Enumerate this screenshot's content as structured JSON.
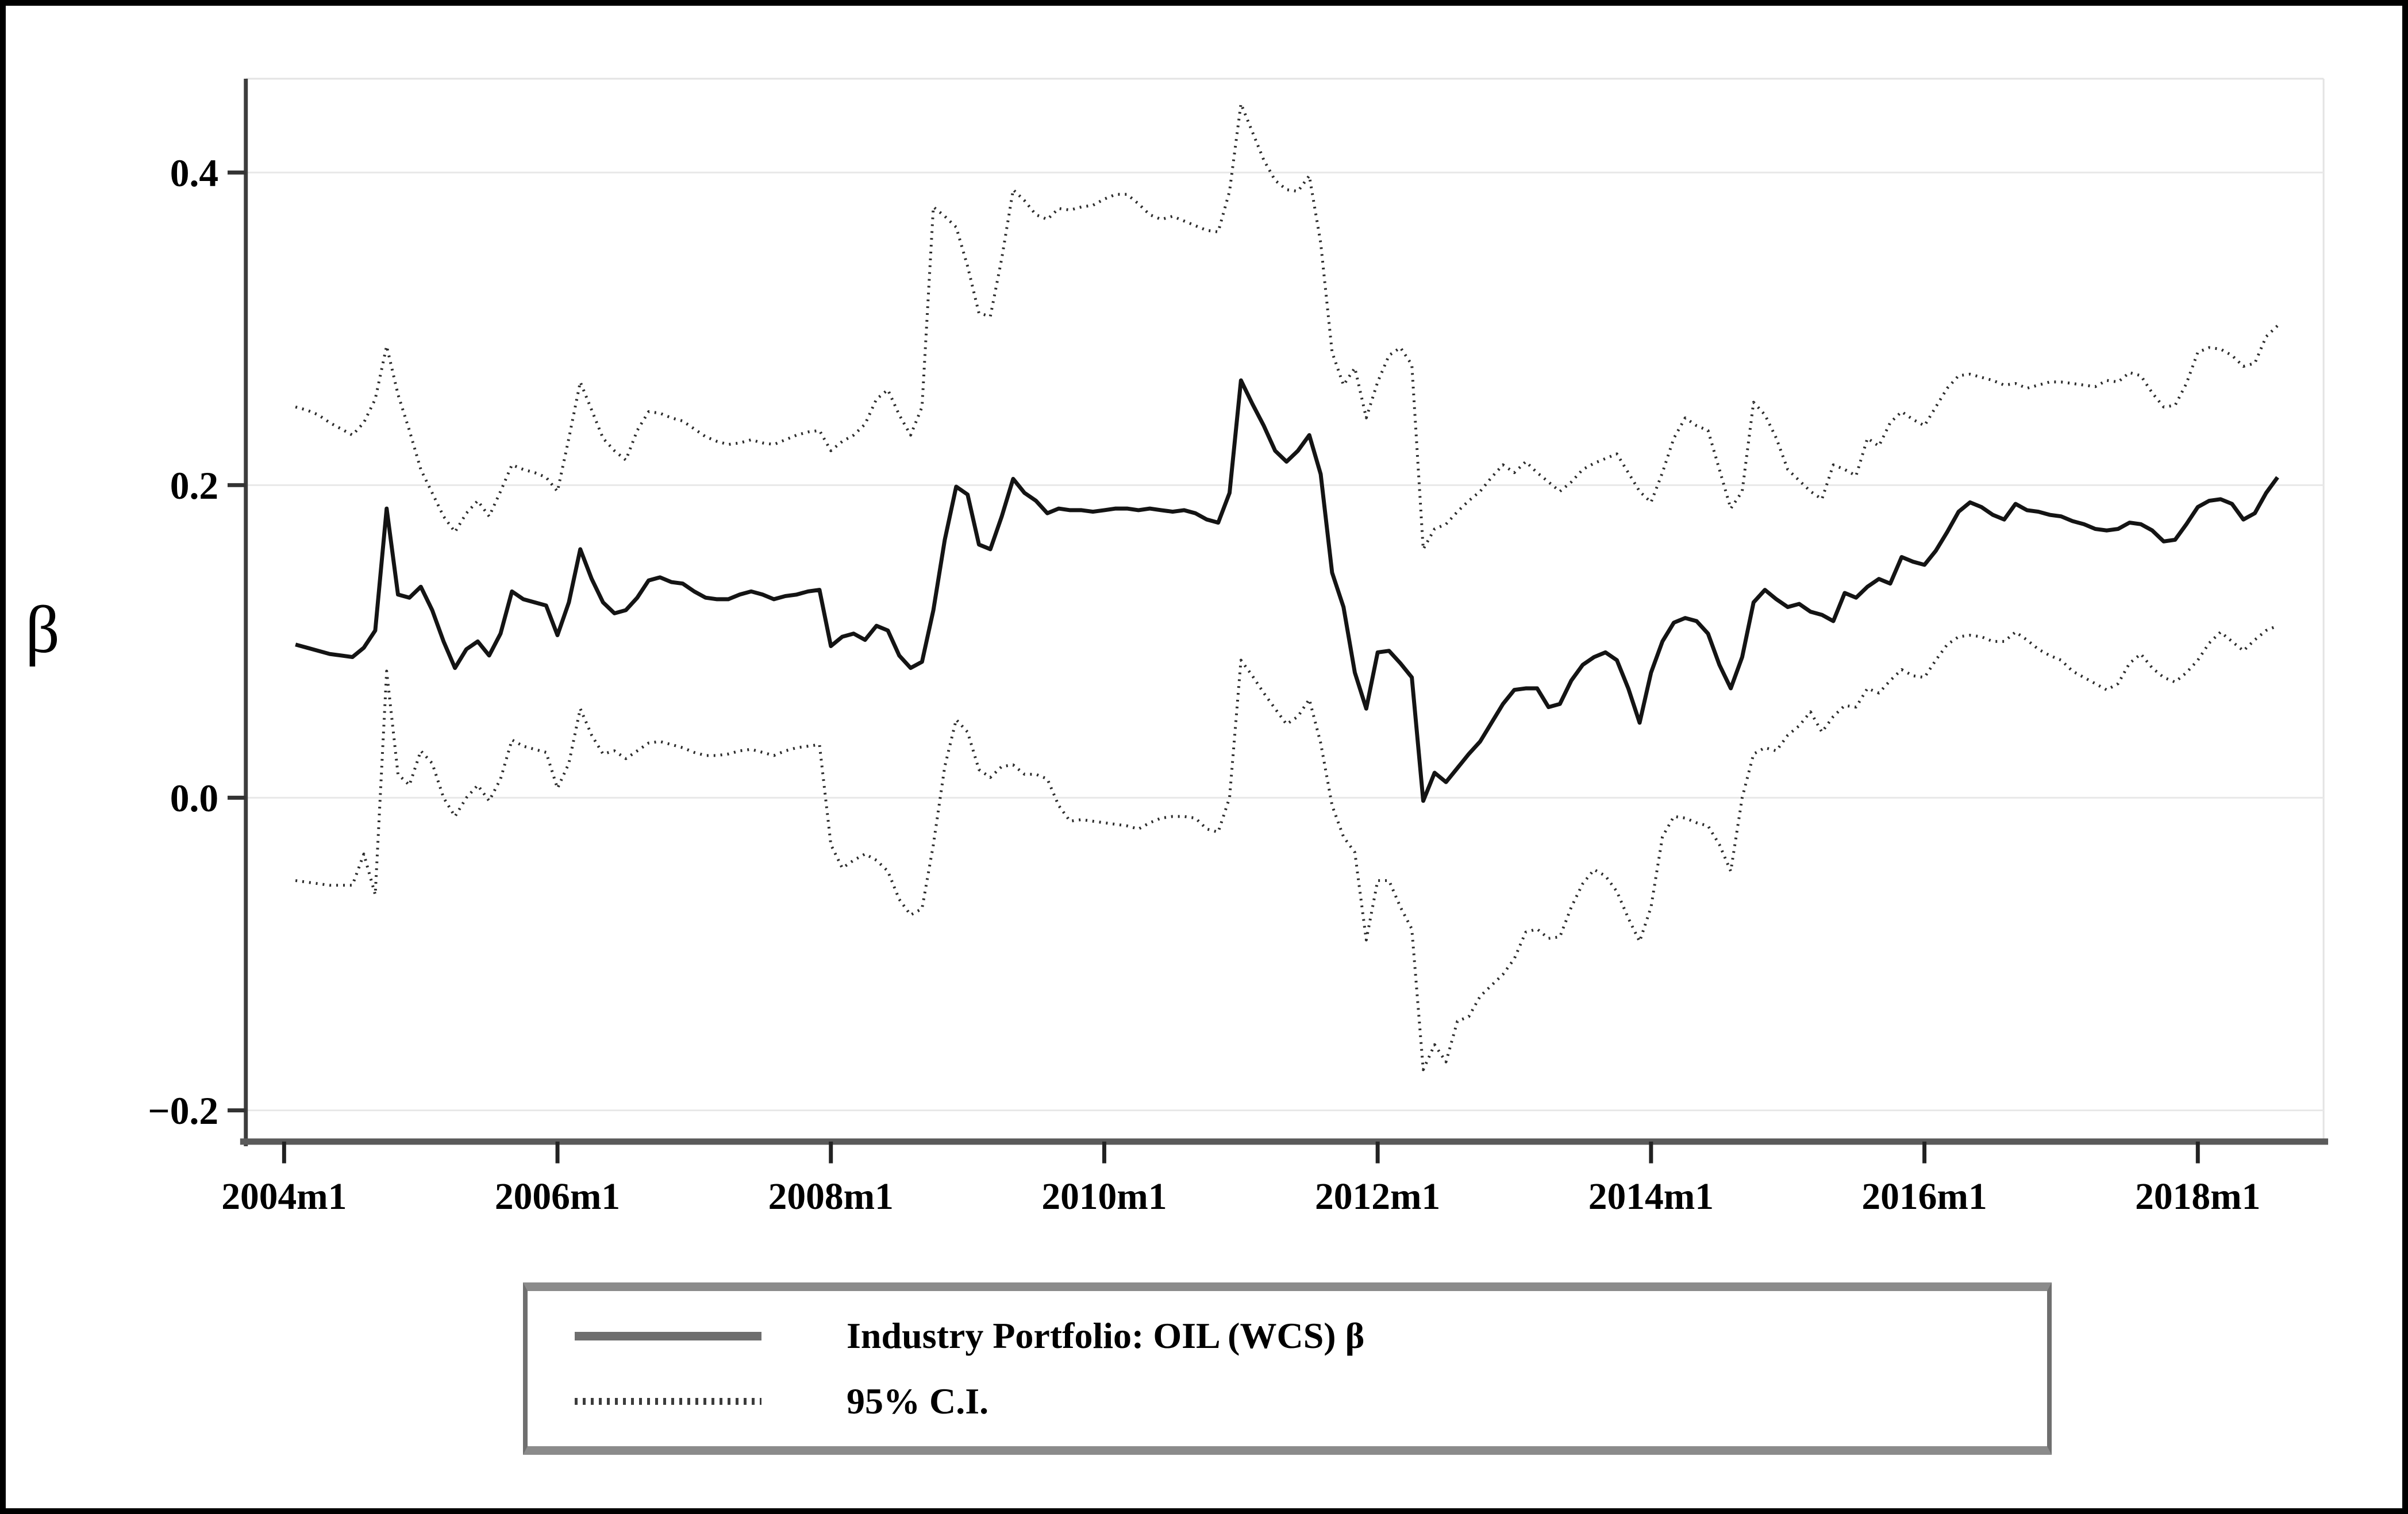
{
  "figure": {
    "ylabel": "β",
    "legend": [
      {
        "label": "Industry Portfolio: OIL (WCS) β",
        "style": "solid"
      },
      {
        "label": "95% C.I.",
        "style": "dotted"
      }
    ]
  },
  "chart_data": {
    "type": "line",
    "title": "",
    "xlabel": "",
    "ylabel": "β",
    "frequency": "monthly",
    "x_start": "2004m2",
    "x_end": "2018m8",
    "xlim_years": [
      2003.72,
      2018.92
    ],
    "ylim": [
      -0.22,
      0.46
    ],
    "grid": true,
    "legend_position": "bottom",
    "x_ticks": [
      {
        "label": "2004m1",
        "year": 2004.0
      },
      {
        "label": "2006m1",
        "year": 2006.0
      },
      {
        "label": "2008m1",
        "year": 2008.0
      },
      {
        "label": "2010m1",
        "year": 2010.0
      },
      {
        "label": "2012m1",
        "year": 2012.0
      },
      {
        "label": "2014m1",
        "year": 2014.0
      },
      {
        "label": "2016m1",
        "year": 2016.0
      },
      {
        "label": "2018m1",
        "year": 2018.0
      }
    ],
    "y_ticks": [
      {
        "label": "−0.2",
        "value": -0.2
      },
      {
        "label": "0.0",
        "value": 0.0
      },
      {
        "label": "0.2",
        "value": 0.2
      },
      {
        "label": "0.4",
        "value": 0.4
      }
    ],
    "series": [
      {
        "name": "Industry Portfolio: OIL (WCS) β",
        "style": "solid",
        "color": "#141414",
        "width": 7,
        "values": [
          0.098,
          0.096,
          0.094,
          0.092,
          0.091,
          0.09,
          0.096,
          0.107,
          0.185,
          0.13,
          0.128,
          0.135,
          0.12,
          0.1,
          0.083,
          0.095,
          0.1,
          0.091,
          0.105,
          0.132,
          0.127,
          0.125,
          0.123,
          0.104,
          0.125,
          0.159,
          0.14,
          0.125,
          0.118,
          0.12,
          0.128,
          0.139,
          0.141,
          0.138,
          0.137,
          0.132,
          0.128,
          0.127,
          0.127,
          0.13,
          0.132,
          0.13,
          0.127,
          0.129,
          0.13,
          0.132,
          0.133,
          0.097,
          0.103,
          0.105,
          0.101,
          0.11,
          0.107,
          0.091,
          0.083,
          0.087,
          0.12,
          0.165,
          0.199,
          0.194,
          0.162,
          0.159,
          0.18,
          0.204,
          0.195,
          0.19,
          0.182,
          0.185,
          0.184,
          0.184,
          0.183,
          0.184,
          0.185,
          0.185,
          0.184,
          0.185,
          0.184,
          0.183,
          0.184,
          0.182,
          0.178,
          0.176,
          0.195,
          0.267,
          0.252,
          0.238,
          0.222,
          0.215,
          0.222,
          0.232,
          0.207,
          0.144,
          0.122,
          0.08,
          0.057,
          0.093,
          0.094,
          0.086,
          0.077,
          -0.002,
          0.016,
          0.01,
          0.019,
          0.028,
          0.036,
          0.048,
          0.06,
          0.069,
          0.07,
          0.07,
          0.058,
          0.06,
          0.075,
          0.085,
          0.09,
          0.093,
          0.088,
          0.07,
          0.048,
          0.08,
          0.1,
          0.112,
          0.115,
          0.113,
          0.105,
          0.085,
          0.07,
          0.09,
          0.125,
          0.133,
          0.127,
          0.122,
          0.124,
          0.119,
          0.117,
          0.113,
          0.131,
          0.128,
          0.135,
          0.14,
          0.137,
          0.154,
          0.151,
          0.149,
          0.158,
          0.17,
          0.183,
          0.189,
          0.186,
          0.181,
          0.178,
          0.188,
          0.184,
          0.183,
          0.181,
          0.18,
          0.177,
          0.175,
          0.172,
          0.171,
          0.172,
          0.176,
          0.175,
          0.171,
          0.164,
          0.165,
          0.175,
          0.186,
          0.19,
          0.191,
          0.188,
          0.178,
          0.182,
          0.195,
          0.205
        ]
      },
      {
        "name": "95% C.I. upper bound",
        "style": "dotted",
        "color": "#2b2b2b",
        "width": 5,
        "dash": "3 9",
        "values": [
          0.25,
          0.248,
          0.245,
          0.24,
          0.236,
          0.232,
          0.24,
          0.255,
          0.289,
          0.258,
          0.235,
          0.21,
          0.195,
          0.18,
          0.17,
          0.182,
          0.19,
          0.18,
          0.196,
          0.213,
          0.21,
          0.208,
          0.205,
          0.196,
          0.23,
          0.266,
          0.248,
          0.23,
          0.222,
          0.216,
          0.235,
          0.247,
          0.246,
          0.243,
          0.241,
          0.236,
          0.231,
          0.228,
          0.226,
          0.227,
          0.229,
          0.227,
          0.226,
          0.229,
          0.232,
          0.234,
          0.235,
          0.222,
          0.228,
          0.232,
          0.239,
          0.255,
          0.261,
          0.245,
          0.232,
          0.25,
          0.378,
          0.372,
          0.365,
          0.34,
          0.31,
          0.308,
          0.345,
          0.389,
          0.382,
          0.373,
          0.37,
          0.377,
          0.376,
          0.378,
          0.379,
          0.383,
          0.386,
          0.386,
          0.38,
          0.373,
          0.37,
          0.372,
          0.369,
          0.366,
          0.363,
          0.362,
          0.388,
          0.444,
          0.426,
          0.408,
          0.395,
          0.389,
          0.388,
          0.398,
          0.355,
          0.285,
          0.264,
          0.275,
          0.243,
          0.266,
          0.283,
          0.288,
          0.277,
          0.159,
          0.172,
          0.175,
          0.183,
          0.19,
          0.196,
          0.205,
          0.213,
          0.208,
          0.215,
          0.208,
          0.202,
          0.196,
          0.202,
          0.21,
          0.214,
          0.217,
          0.22,
          0.208,
          0.196,
          0.189,
          0.208,
          0.23,
          0.243,
          0.238,
          0.235,
          0.21,
          0.185,
          0.196,
          0.253,
          0.245,
          0.23,
          0.21,
          0.203,
          0.196,
          0.191,
          0.213,
          0.21,
          0.206,
          0.23,
          0.225,
          0.24,
          0.247,
          0.242,
          0.238,
          0.25,
          0.262,
          0.27,
          0.271,
          0.269,
          0.267,
          0.264,
          0.265,
          0.262,
          0.264,
          0.266,
          0.266,
          0.265,
          0.264,
          0.263,
          0.267,
          0.266,
          0.272,
          0.27,
          0.259,
          0.25,
          0.251,
          0.265,
          0.285,
          0.288,
          0.287,
          0.283,
          0.276,
          0.278,
          0.295,
          0.302
        ]
      },
      {
        "name": "95% C.I. lower bound",
        "style": "dotted",
        "color": "#2b2b2b",
        "width": 5,
        "dash": "3 9",
        "values": [
          -0.053,
          -0.054,
          -0.055,
          -0.056,
          -0.056,
          -0.056,
          -0.036,
          -0.062,
          0.081,
          0.015,
          0.008,
          0.03,
          0.022,
          0.0,
          -0.012,
          0.0,
          0.008,
          -0.002,
          0.012,
          0.037,
          0.033,
          0.031,
          0.029,
          0.006,
          0.022,
          0.057,
          0.04,
          0.028,
          0.03,
          0.025,
          0.03,
          0.035,
          0.036,
          0.034,
          0.032,
          0.029,
          0.027,
          0.027,
          0.028,
          0.03,
          0.031,
          0.029,
          0.027,
          0.03,
          0.032,
          0.033,
          0.034,
          -0.03,
          -0.045,
          -0.04,
          -0.036,
          -0.04,
          -0.047,
          -0.065,
          -0.075,
          -0.071,
          -0.03,
          0.02,
          0.05,
          0.042,
          0.018,
          0.013,
          0.02,
          0.021,
          0.015,
          0.015,
          0.012,
          -0.005,
          -0.015,
          -0.014,
          -0.015,
          -0.016,
          -0.017,
          -0.018,
          -0.02,
          -0.016,
          -0.013,
          -0.012,
          -0.012,
          -0.013,
          -0.02,
          -0.022,
          0.0,
          0.088,
          0.078,
          0.067,
          0.057,
          0.047,
          0.052,
          0.063,
          0.035,
          -0.005,
          -0.025,
          -0.035,
          -0.091,
          -0.053,
          -0.053,
          -0.07,
          -0.084,
          -0.174,
          -0.158,
          -0.169,
          -0.143,
          -0.14,
          -0.127,
          -0.12,
          -0.113,
          -0.103,
          -0.086,
          -0.084,
          -0.09,
          -0.089,
          -0.07,
          -0.055,
          -0.046,
          -0.05,
          -0.06,
          -0.077,
          -0.092,
          -0.07,
          -0.025,
          -0.012,
          -0.013,
          -0.016,
          -0.018,
          -0.03,
          -0.047,
          0.0,
          0.028,
          0.032,
          0.03,
          0.04,
          0.046,
          0.055,
          0.042,
          0.052,
          0.059,
          0.058,
          0.07,
          0.067,
          0.075,
          0.082,
          0.078,
          0.077,
          0.088,
          0.098,
          0.103,
          0.104,
          0.103,
          0.1,
          0.1,
          0.106,
          0.101,
          0.095,
          0.091,
          0.088,
          0.081,
          0.077,
          0.073,
          0.069,
          0.073,
          0.086,
          0.092,
          0.083,
          0.077,
          0.074,
          0.08,
          0.088,
          0.099,
          0.106,
          0.1,
          0.094,
          0.101,
          0.107,
          0.11
        ]
      }
    ]
  }
}
